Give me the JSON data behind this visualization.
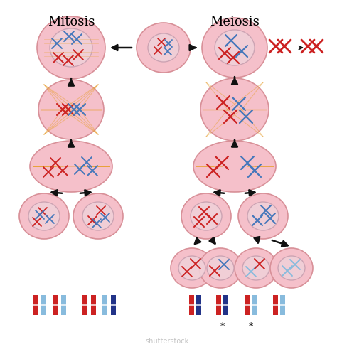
{
  "title_mitosis": "Mitosis",
  "title_meiosis": "Meiosis",
  "bg_color": "#ffffff",
  "cell_fill": "#f5c0ca",
  "cell_edge": "#d89098",
  "nucleus_fill": "#f0d0d8",
  "nucleus_edge": "#c8a0b0",
  "dark_red": "#cc2222",
  "medium_red": "#cc3333",
  "blue": "#4477bb",
  "light_blue": "#88bbdd",
  "dark_blue": "#223388",
  "orange": "#e8a030",
  "arrow_color": "#111111",
  "figsize": [
    4.74,
    4.89
  ],
  "dpi": 100
}
